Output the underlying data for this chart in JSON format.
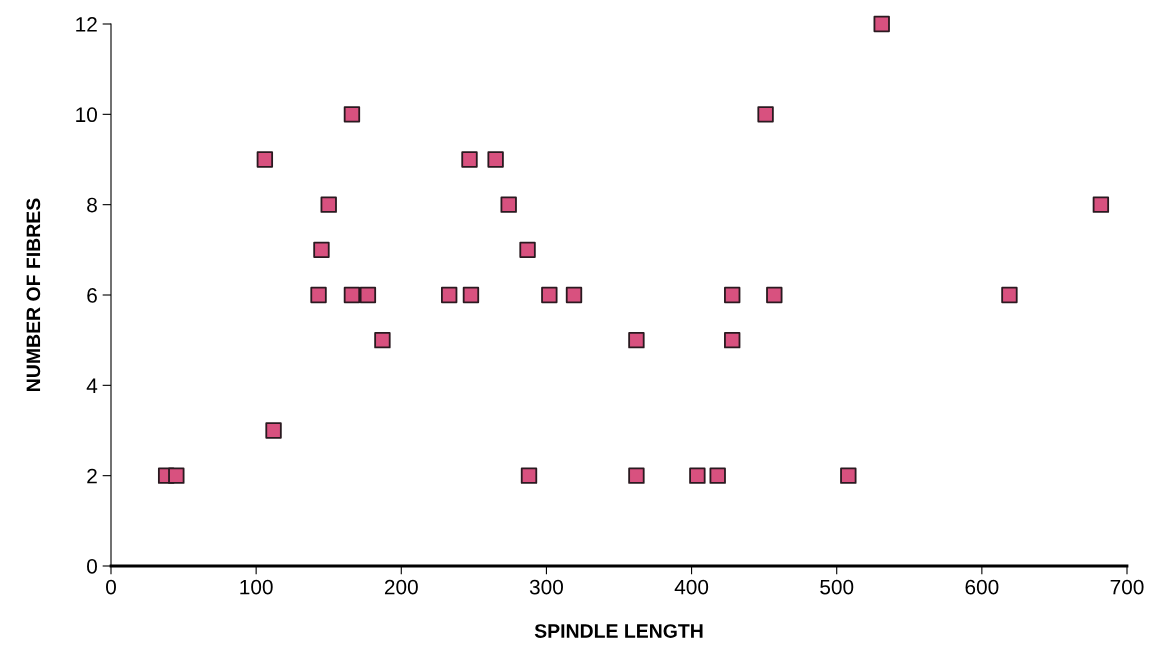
{
  "chart_data": {
    "type": "scatter",
    "xlabel": "SPINDLE LENGTH",
    "ylabel": "NUMBER OF FIBRES",
    "x": [
      38,
      45,
      106,
      112,
      143,
      145,
      150,
      166,
      166,
      177,
      187,
      233,
      247,
      248,
      265,
      274,
      287,
      288,
      302,
      319,
      362,
      362,
      404,
      418,
      428,
      428,
      451,
      457,
      508,
      531,
      619,
      682
    ],
    "series": [
      {
        "color": "#d8517f",
        "values": [
          2,
          2,
          9,
          3,
          6,
          7,
          8,
          10,
          6,
          6,
          5,
          6,
          9,
          6,
          9,
          8,
          7,
          2,
          6,
          6,
          5,
          2,
          2,
          2,
          6,
          5,
          10,
          6,
          2,
          12,
          6,
          8
        ]
      }
    ],
    "marker": "square",
    "xlim": [
      0,
      700
    ],
    "xticks": [
      0,
      100,
      200,
      300,
      400,
      500,
      600,
      700
    ],
    "ylim": [
      0,
      12
    ],
    "yticks": [
      0,
      2,
      4,
      6,
      8,
      10,
      12
    ],
    "grid": false,
    "legend": false
  }
}
